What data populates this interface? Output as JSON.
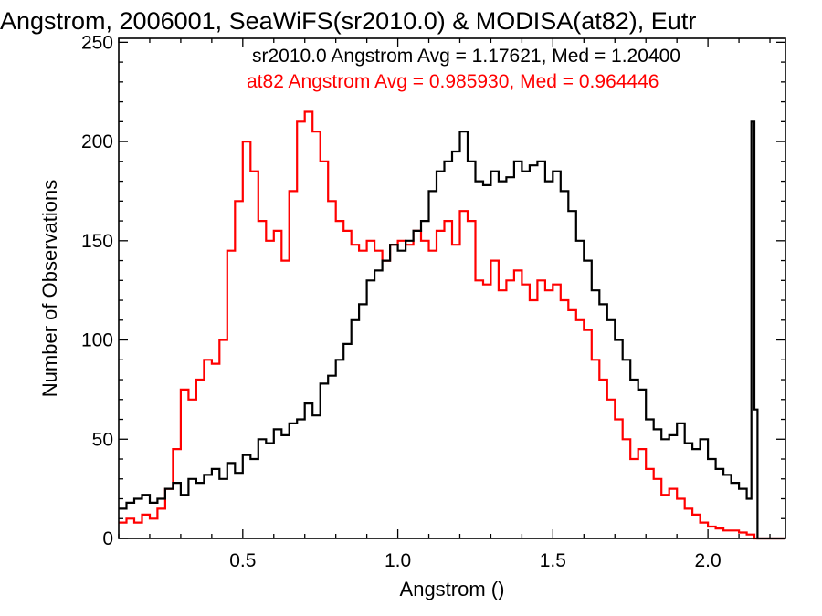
{
  "chart_data": {
    "type": "line",
    "title": "Angstrom, 2006001, SeaWiFS(sr2010.0) & MODISA(at82), Eutr",
    "xlabel": "Angstrom ()",
    "ylabel": "Number of Observations",
    "xlim": [
      0.1,
      2.25
    ],
    "ylim": [
      0,
      252
    ],
    "x_ticks": [
      "0.5",
      "1.0",
      "1.5",
      "2.0"
    ],
    "y_ticks": [
      "0",
      "50",
      "100",
      "150",
      "200",
      "250"
    ],
    "grid": false,
    "step": true,
    "annotations": [
      "sr2010.0 Angstrom Avg = 1.17621, Med = 1.20400",
      "at82 Angstrom Avg = 0.985930, Med = 0.964446"
    ],
    "colors": {
      "sr2010.0": "#000000",
      "at82": "#ff0000"
    },
    "series": [
      {
        "color": "#000000",
        "x": [
          0.1,
          0.125,
          0.15,
          0.175,
          0.2,
          0.225,
          0.25,
          0.275,
          0.3,
          0.325,
          0.35,
          0.375,
          0.4,
          0.425,
          0.45,
          0.475,
          0.5,
          0.525,
          0.55,
          0.575,
          0.6,
          0.625,
          0.65,
          0.675,
          0.7,
          0.725,
          0.75,
          0.775,
          0.8,
          0.825,
          0.85,
          0.875,
          0.9,
          0.925,
          0.95,
          0.975,
          1.0,
          1.025,
          1.05,
          1.075,
          1.1,
          1.125,
          1.15,
          1.175,
          1.2,
          1.225,
          1.25,
          1.275,
          1.3,
          1.325,
          1.35,
          1.375,
          1.4,
          1.425,
          1.45,
          1.475,
          1.5,
          1.525,
          1.55,
          1.575,
          1.6,
          1.625,
          1.65,
          1.675,
          1.7,
          1.725,
          1.75,
          1.775,
          1.8,
          1.825,
          1.85,
          1.875,
          1.9,
          1.925,
          1.95,
          1.975,
          2.0,
          2.025,
          2.05,
          2.075,
          2.1,
          2.125,
          2.14,
          2.15,
          2.16,
          2.25
        ],
        "y": [
          15,
          18,
          20,
          22,
          18,
          20,
          25,
          28,
          22,
          30,
          28,
          32,
          35,
          30,
          38,
          33,
          42,
          40,
          50,
          48,
          55,
          52,
          58,
          60,
          68,
          62,
          78,
          82,
          90,
          98,
          110,
          118,
          130,
          135,
          140,
          148,
          145,
          150,
          155,
          160,
          175,
          185,
          190,
          195,
          205,
          190,
          180,
          178,
          185,
          180,
          182,
          190,
          185,
          188,
          190,
          180,
          185,
          175,
          165,
          150,
          140,
          125,
          118,
          110,
          100,
          90,
          80,
          75,
          60,
          55,
          50,
          52,
          58,
          48,
          45,
          50,
          40,
          35,
          32,
          28,
          25,
          20,
          210,
          65,
          0,
          0
        ]
      },
      {
        "color": "#ff0000",
        "x": [
          0.1,
          0.125,
          0.15,
          0.175,
          0.2,
          0.225,
          0.25,
          0.275,
          0.3,
          0.325,
          0.35,
          0.375,
          0.4,
          0.425,
          0.45,
          0.475,
          0.5,
          0.525,
          0.55,
          0.575,
          0.6,
          0.625,
          0.65,
          0.675,
          0.7,
          0.725,
          0.75,
          0.775,
          0.8,
          0.825,
          0.85,
          0.875,
          0.9,
          0.925,
          0.95,
          0.975,
          1.0,
          1.025,
          1.05,
          1.075,
          1.1,
          1.125,
          1.15,
          1.175,
          1.2,
          1.225,
          1.25,
          1.275,
          1.3,
          1.325,
          1.35,
          1.375,
          1.4,
          1.425,
          1.45,
          1.475,
          1.5,
          1.525,
          1.55,
          1.575,
          1.6,
          1.625,
          1.65,
          1.675,
          1.7,
          1.725,
          1.75,
          1.775,
          1.8,
          1.825,
          1.85,
          1.875,
          1.9,
          1.925,
          1.95,
          1.975,
          2.0,
          2.025,
          2.05,
          2.075,
          2.1,
          2.125,
          2.14,
          2.15,
          2.25
        ],
        "y": [
          8,
          10,
          8,
          12,
          10,
          15,
          25,
          45,
          75,
          70,
          80,
          90,
          88,
          100,
          145,
          170,
          200,
          185,
          160,
          150,
          155,
          140,
          175,
          210,
          215,
          205,
          190,
          170,
          160,
          155,
          148,
          145,
          150,
          145,
          140,
          148,
          150,
          148,
          155,
          150,
          145,
          155,
          160,
          148,
          165,
          160,
          130,
          128,
          140,
          125,
          130,
          135,
          128,
          120,
          130,
          125,
          128,
          120,
          115,
          110,
          105,
          90,
          80,
          70,
          60,
          50,
          40,
          45,
          35,
          30,
          22,
          25,
          20,
          15,
          12,
          8,
          6,
          5,
          4,
          4,
          3,
          2,
          2,
          0,
          0
        ]
      }
    ]
  }
}
